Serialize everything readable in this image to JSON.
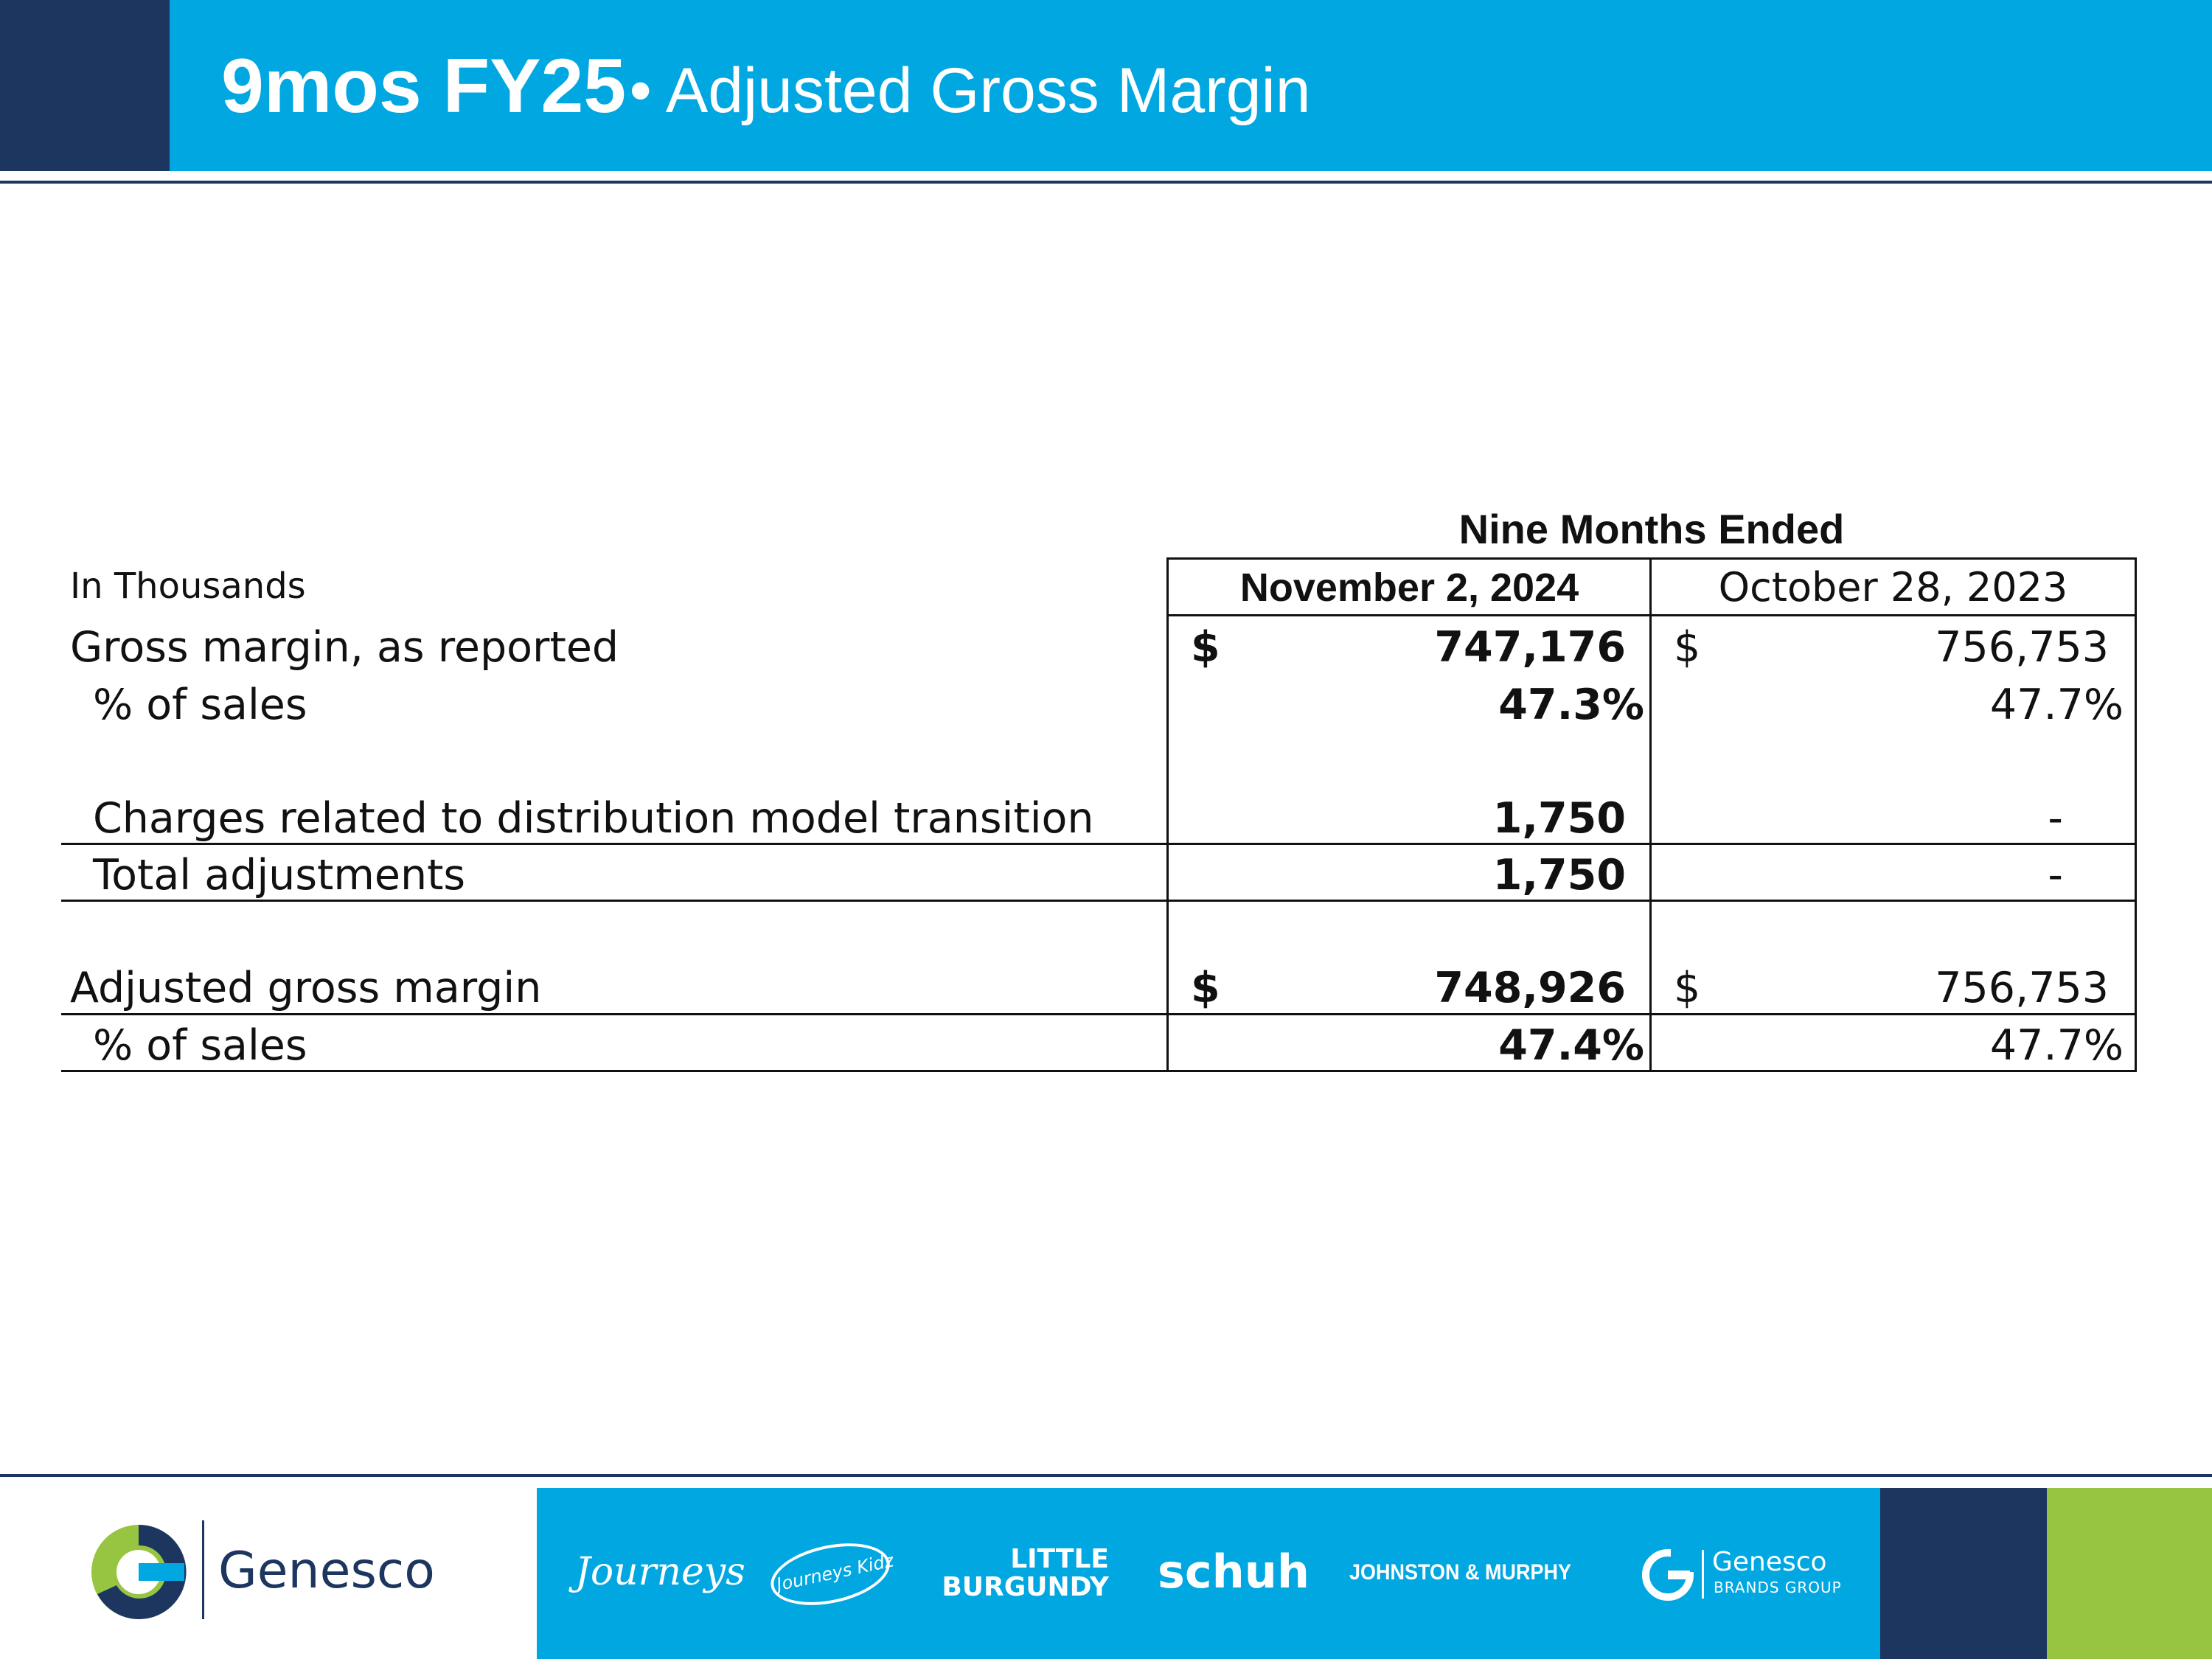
{
  "header": {
    "title_bold": "9mos FY25",
    "title_rest": "• Adjusted Gross Margin"
  },
  "table": {
    "units_label": "In Thousands",
    "period_header": "Nine Months Ended",
    "col1_header": "November 2, 2024",
    "col2_header": "October 28, 2023",
    "rows": [
      {
        "label": "Gross margin, as reported",
        "c1_sym": "$",
        "c1": "747,176",
        "c2_sym": "$",
        "c2": "756,753"
      },
      {
        "label": "% of sales",
        "c1": "47.3%",
        "c2": "47.7%"
      },
      {
        "label": "Charges related to distribution model transition",
        "c1": "1,750",
        "c2": "-"
      },
      {
        "label": "Total adjustments",
        "c1": "1,750",
        "c2": "-"
      },
      {
        "label": "Adjusted gross margin",
        "c1_sym": "$",
        "c1": "748,926",
        "c2_sym": "$",
        "c2": "756,753"
      },
      {
        "label": "% of sales",
        "c1": "47.4%",
        "c2": "47.7%"
      }
    ]
  },
  "footer": {
    "company_name": "Genesco",
    "brands": [
      "Journeys",
      "Journeys Kidz",
      "LITTLE",
      "BURGUNDY",
      "schuh",
      "JOHNSTON & MURPHY",
      "Genesco",
      "BRANDS GROUP"
    ]
  },
  "colors": {
    "navy": "#1d3660",
    "blue": "#00a7e1",
    "green": "#97c541"
  }
}
